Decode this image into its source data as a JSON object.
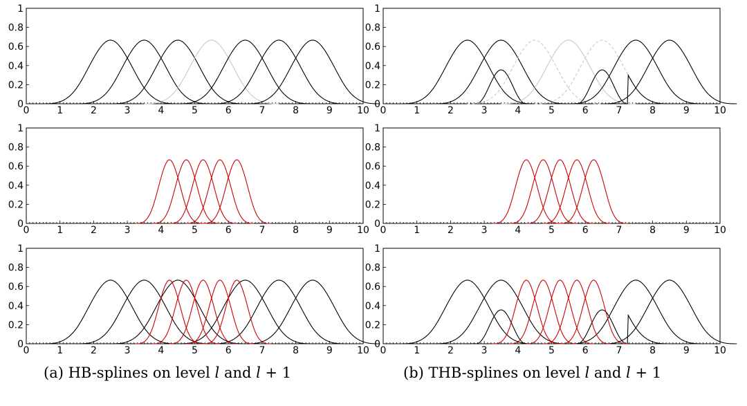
{
  "chart_data": [
    {
      "type": "line",
      "column": "a",
      "row": 0,
      "xlim": [
        0,
        10
      ],
      "ylim": [
        0,
        1
      ],
      "xticks": [
        "0",
        "1",
        "2",
        "3",
        "4",
        "5",
        "6",
        "7",
        "8",
        "9",
        "10"
      ],
      "yticks": [
        "0",
        "0.2",
        "0.4",
        "0.6",
        "0.8",
        "1"
      ],
      "grid": false,
      "legend": "none",
      "series": [
        {
          "knots": [
            0.5,
            1.5,
            2.5,
            3.5
          ],
          "color": "#000000",
          "dash": false
        },
        {
          "knots": [
            1.5,
            2.5,
            3.5,
            4.5
          ],
          "color": "#000000",
          "dash": false
        },
        {
          "knots": [
            2.5,
            3.5,
            4.5,
            5.5
          ],
          "color": "#000000",
          "dash": false
        },
        {
          "knots": [
            3.5,
            4.5,
            5.5,
            6.5
          ],
          "color": "#c8c8c8",
          "dash": false
        },
        {
          "knots": [
            4.5,
            5.5,
            6.5,
            7.5
          ],
          "color": "#000000",
          "dash": false
        },
        {
          "knots": [
            5.5,
            6.5,
            7.5,
            8.5
          ],
          "color": "#000000",
          "dash": false
        },
        {
          "knots": [
            6.5,
            7.5,
            8.5,
            9.5
          ],
          "color": "#000000",
          "dash": false
        }
      ]
    },
    {
      "type": "line",
      "column": "a",
      "row": 1,
      "xlim": [
        0,
        10
      ],
      "ylim": [
        0,
        1
      ],
      "xticks": [
        "0",
        "1",
        "2",
        "3",
        "4",
        "5",
        "6",
        "7",
        "8",
        "9",
        "10"
      ],
      "yticks": [
        "0",
        "0.2",
        "0.4",
        "0.6",
        "0.8",
        "1"
      ],
      "grid": false,
      "legend": "none",
      "series": [
        {
          "knots": [
            3.25,
            3.75,
            4.25,
            4.75
          ],
          "color": "#cc0000",
          "dash": false
        },
        {
          "knots": [
            3.75,
            4.25,
            4.75,
            5.25
          ],
          "color": "#cc0000",
          "dash": false
        },
        {
          "knots": [
            4.25,
            4.75,
            5.25,
            5.75
          ],
          "color": "#cc0000",
          "dash": false
        },
        {
          "knots": [
            4.75,
            5.25,
            5.75,
            6.25
          ],
          "color": "#cc0000",
          "dash": false
        },
        {
          "knots": [
            5.25,
            5.75,
            6.25,
            6.75
          ],
          "color": "#cc0000",
          "dash": false
        }
      ]
    },
    {
      "type": "line",
      "column": "a",
      "row": 2,
      "xlim": [
        0,
        10
      ],
      "ylim": [
        0,
        1
      ],
      "xticks": [
        "0",
        "1",
        "2",
        "3",
        "4",
        "5",
        "6",
        "7",
        "8",
        "9",
        "10"
      ],
      "yticks": [
        "0",
        "0.2",
        "0.4",
        "0.6",
        "0.8",
        "1"
      ],
      "grid": false,
      "legend": "none",
      "series": [
        {
          "knots": [
            0.5,
            1.5,
            2.5,
            3.5
          ],
          "color": "#000000",
          "dash": false
        },
        {
          "knots": [
            1.5,
            2.5,
            3.5,
            4.5
          ],
          "color": "#000000",
          "dash": false
        },
        {
          "knots": [
            2.5,
            3.5,
            4.5,
            5.5
          ],
          "color": "#000000",
          "dash": false
        },
        {
          "knots": [
            4.5,
            5.5,
            6.5,
            7.5
          ],
          "color": "#000000",
          "dash": false
        },
        {
          "knots": [
            5.5,
            6.5,
            7.5,
            8.5
          ],
          "color": "#000000",
          "dash": false
        },
        {
          "knots": [
            6.5,
            7.5,
            8.5,
            9.5
          ],
          "color": "#000000",
          "dash": false
        },
        {
          "knots": [
            3.25,
            3.75,
            4.25,
            4.75
          ],
          "color": "#cc0000",
          "dash": false
        },
        {
          "knots": [
            3.75,
            4.25,
            4.75,
            5.25
          ],
          "color": "#cc0000",
          "dash": false
        },
        {
          "knots": [
            4.25,
            4.75,
            5.25,
            5.75
          ],
          "color": "#cc0000",
          "dash": false
        },
        {
          "knots": [
            4.75,
            5.25,
            5.75,
            6.25
          ],
          "color": "#cc0000",
          "dash": false
        },
        {
          "knots": [
            5.25,
            5.75,
            6.25,
            6.75
          ],
          "color": "#cc0000",
          "dash": false
        }
      ]
    },
    {
      "type": "line",
      "column": "b",
      "row": 0,
      "xlim": [
        0,
        10
      ],
      "ylim": [
        0,
        1
      ],
      "xticks": [
        "0",
        "1",
        "2",
        "3",
        "4",
        "5",
        "6",
        "7",
        "8",
        "9",
        "10"
      ],
      "yticks": [
        "0",
        "0.2",
        "0.4",
        "0.6",
        "0.8",
        "1"
      ],
      "grid": false,
      "legend": "none",
      "series": [
        {
          "knots": [
            0.5,
            1.5,
            2.5,
            3.5
          ],
          "color": "#000000",
          "dash": false
        },
        {
          "knots": [
            1.5,
            2.5,
            3.5,
            4.5
          ],
          "color": "#000000",
          "dash": false,
          "clip_at": 3.25
        },
        {
          "knots": [
            2.5,
            3.5,
            4.5,
            5.5
          ],
          "color": "#000000",
          "dash": false,
          "truncated": true
        },
        {
          "knots": [
            2.5,
            3.5,
            4.5,
            5.5
          ],
          "color": "#c8c8c8",
          "dash": true
        },
        {
          "knots": [
            3.5,
            4.5,
            5.5,
            6.5
          ],
          "color": "#c8c8c8",
          "dash": false
        },
        {
          "knots": [
            4.5,
            5.5,
            6.5,
            7.5
          ],
          "color": "#c8c8c8",
          "dash": true
        },
        {
          "knots": [
            4.5,
            5.5,
            6.5,
            7.5
          ],
          "color": "#000000",
          "dash": false,
          "truncated": true
        },
        {
          "knots": [
            5.5,
            6.5,
            7.5,
            8.5
          ],
          "color": "#000000",
          "dash": false,
          "clip_from": 6.75
        },
        {
          "knots": [
            6.5,
            7.5,
            8.5,
            9.5
          ],
          "color": "#000000",
          "dash": false
        }
      ]
    },
    {
      "type": "line",
      "column": "b",
      "row": 1,
      "xlim": [
        0,
        10
      ],
      "ylim": [
        0,
        1
      ],
      "xticks": [
        "0",
        "1",
        "2",
        "3",
        "4",
        "5",
        "6",
        "7",
        "8",
        "9",
        "10"
      ],
      "yticks": [
        "0",
        "0.2",
        "0.4",
        "0.6",
        "0.8",
        "1"
      ],
      "grid": false,
      "legend": "none",
      "series": [
        {
          "knots": [
            3.25,
            3.75,
            4.25,
            4.75
          ],
          "color": "#cc0000",
          "dash": false
        },
        {
          "knots": [
            3.75,
            4.25,
            4.75,
            5.25
          ],
          "color": "#cc0000",
          "dash": false
        },
        {
          "knots": [
            4.25,
            4.75,
            5.25,
            5.75
          ],
          "color": "#cc0000",
          "dash": false
        },
        {
          "knots": [
            4.75,
            5.25,
            5.75,
            6.25
          ],
          "color": "#cc0000",
          "dash": false
        },
        {
          "knots": [
            5.25,
            5.75,
            6.25,
            6.75
          ],
          "color": "#cc0000",
          "dash": false
        }
      ]
    },
    {
      "type": "line",
      "column": "b",
      "row": 2,
      "xlim": [
        0,
        10
      ],
      "ylim": [
        0,
        1
      ],
      "xticks": [
        "0",
        "1",
        "2",
        "3",
        "4",
        "5",
        "6",
        "7",
        "8",
        "9",
        "10"
      ],
      "yticks": [
        "0",
        "0.2",
        "0.4",
        "0.6",
        "0.8",
        "1"
      ],
      "grid": false,
      "legend": "none",
      "series": [
        {
          "knots": [
            0.5,
            1.5,
            2.5,
            3.5
          ],
          "color": "#000000",
          "dash": false
        },
        {
          "knots": [
            1.5,
            2.5,
            3.5,
            4.5
          ],
          "color": "#000000",
          "dash": false,
          "clip_at": 3.25
        },
        {
          "knots": [
            2.5,
            3.5,
            4.5,
            5.5
          ],
          "color": "#000000",
          "dash": false,
          "truncated": true
        },
        {
          "knots": [
            4.5,
            5.5,
            6.5,
            7.5
          ],
          "color": "#000000",
          "dash": false,
          "truncated": true
        },
        {
          "knots": [
            5.5,
            6.5,
            7.5,
            8.5
          ],
          "color": "#000000",
          "dash": false,
          "clip_from": 6.75
        },
        {
          "knots": [
            6.5,
            7.5,
            8.5,
            9.5
          ],
          "color": "#000000",
          "dash": false
        },
        {
          "knots": [
            3.25,
            3.75,
            4.25,
            4.75
          ],
          "color": "#cc0000",
          "dash": false
        },
        {
          "knots": [
            3.75,
            4.25,
            4.75,
            5.25
          ],
          "color": "#cc0000",
          "dash": false
        },
        {
          "knots": [
            4.25,
            4.75,
            5.25,
            5.75
          ],
          "color": "#cc0000",
          "dash": false
        },
        {
          "knots": [
            4.75,
            5.25,
            5.75,
            6.25
          ],
          "color": "#cc0000",
          "dash": false
        },
        {
          "knots": [
            5.25,
            5.75,
            6.25,
            6.75
          ],
          "color": "#cc0000",
          "dash": false
        }
      ]
    }
  ],
  "captions": {
    "a": {
      "prefix": "(a) HB-splines on level ",
      "l1": "l",
      "mid": " and ",
      "l2": "l",
      "suffix": " + 1"
    },
    "b": {
      "prefix": "(b) THB-splines on level ",
      "l1": "l",
      "mid": " and ",
      "l2": "l",
      "suffix": " + 1"
    }
  }
}
